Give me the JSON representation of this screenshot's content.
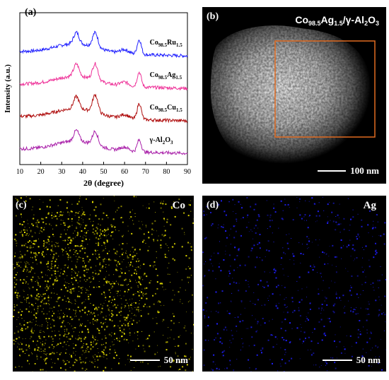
{
  "panels": {
    "a": {
      "label": "(a)"
    },
    "b": {
      "label": "(b)",
      "caption": {
        "main": "Co",
        "sub1": "98.5",
        "mid": "Ag",
        "sub2": "1.5",
        "tail": "/γ-Al",
        "sub3": "2",
        "end": "O",
        "sub4": "3"
      },
      "scale": "100 nm"
    },
    "c": {
      "label": "(c)",
      "element": "Co",
      "scale": "50 nm",
      "dot_color": "#e8e000"
    },
    "d": {
      "label": "(d)",
      "element": "Ag",
      "scale": "50 nm",
      "dot_color": "#2020ff"
    }
  },
  "chart_data": {
    "type": "line",
    "xlabel": "2θ (degree)",
    "ylabel": "Intensity (a.u.)",
    "xlim": [
      10,
      90
    ],
    "x_ticks": [
      10,
      20,
      30,
      40,
      50,
      60,
      70,
      80,
      90
    ],
    "peaks_2theta": [
      37,
      46,
      67
    ],
    "series": [
      {
        "name": "Co98.5Ru1.5",
        "label_main": "Co",
        "label_sub1": "98.5",
        "label_el": "Ru",
        "label_sub2": "1.5",
        "color": "#1f1fff",
        "offset": 3,
        "peak_heights": [
          0.42,
          0.55,
          0.55
        ]
      },
      {
        "name": "Co98.5Ag1.5",
        "label_main": "Co",
        "label_sub1": "98.5",
        "label_el": "Ag",
        "label_sub2": "1.5",
        "color": "#ee3399",
        "offset": 2,
        "peak_heights": [
          0.45,
          0.6,
          0.55
        ]
      },
      {
        "name": "Co98.5Cu1.5",
        "label_main": "Co",
        "label_sub1": "98.5",
        "label_el": "Cu",
        "label_sub2": "1.5",
        "color": "#b01010",
        "offset": 1,
        "peak_heights": [
          0.45,
          0.65,
          0.6
        ]
      },
      {
        "name": "γ-Al2O3",
        "label_main": "γ-Al",
        "label_sub1": "2",
        "label_el": "O",
        "label_sub2": "3",
        "color": "#aa22aa",
        "offset": 0,
        "peak_heights": [
          0.4,
          0.5,
          0.45
        ]
      }
    ]
  }
}
